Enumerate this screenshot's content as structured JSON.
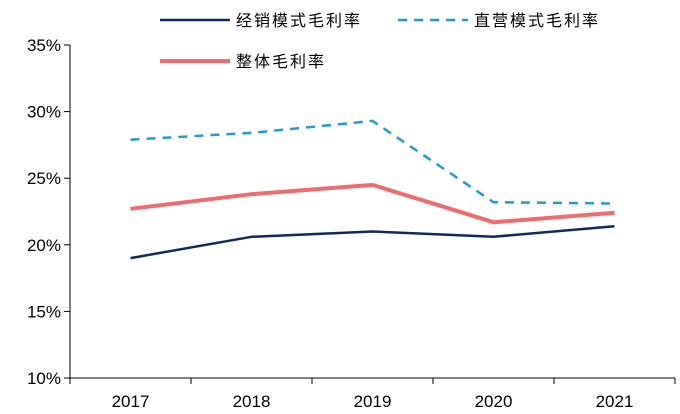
{
  "chart_data": {
    "type": "line",
    "title": "",
    "xlabel": "",
    "ylabel": "",
    "categories": [
      "2017",
      "2018",
      "2019",
      "2020",
      "2021"
    ],
    "ylim": [
      0.1,
      0.35
    ],
    "y_ticks": [
      0.1,
      0.15,
      0.2,
      0.25,
      0.3,
      0.35
    ],
    "y_tick_labels": [
      "10%",
      "15%",
      "20%",
      "25%",
      "30%",
      "35%"
    ],
    "grid": false,
    "legend_position": "top",
    "series": [
      {
        "name": "经销模式毛利率",
        "values": [
          0.19,
          0.206,
          0.21,
          0.206,
          0.214
        ],
        "color": "#0d2b5e",
        "style": "solid"
      },
      {
        "name": "直营模式毛利率",
        "values": [
          0.279,
          0.284,
          0.293,
          0.232,
          0.231
        ],
        "color": "#1f9ad6",
        "style": "dashed"
      },
      {
        "name": "整体毛利率",
        "values": [
          0.227,
          0.238,
          0.245,
          0.217,
          0.224
        ],
        "color": "#ee6b6e",
        "style": "thick"
      }
    ]
  }
}
